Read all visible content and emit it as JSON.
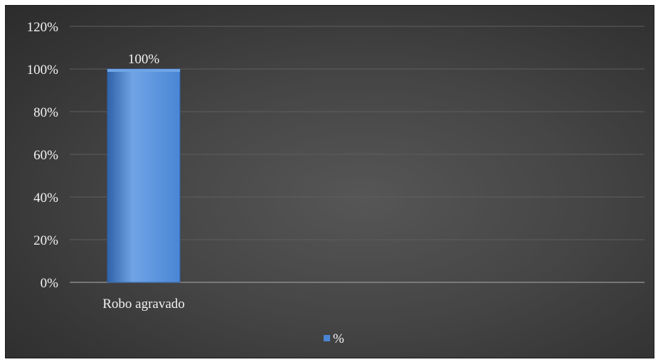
{
  "chart_data": {
    "type": "bar",
    "categories": [
      "Robo agravado"
    ],
    "series": [
      {
        "name": "%",
        "values": [
          100
        ]
      }
    ],
    "data_labels": [
      "100%"
    ],
    "y_ticks": [
      "0%",
      "20%",
      "40%",
      "60%",
      "80%",
      "100%",
      "120%"
    ],
    "ylim": [
      0,
      120
    ],
    "title": "",
    "xlabel": "",
    "ylabel": "",
    "grid": true,
    "legend_position": "bottom",
    "colors": {
      "bar": "#4a86d4",
      "bar_light": "#6fa4e6",
      "bar_dark": "#2f62a8",
      "grid": "#5e5e5e",
      "axis": "#8a8a8a",
      "text": "#f2f2f2"
    }
  }
}
